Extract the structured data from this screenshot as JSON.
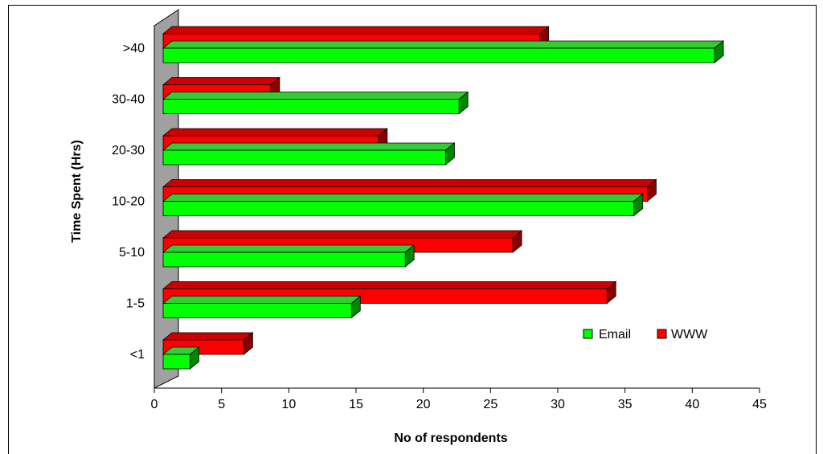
{
  "chart_data": {
    "type": "bar",
    "orientation": "horizontal",
    "style": "3d",
    "title": "",
    "xlabel": "No of respondents",
    "ylabel": "Time Spent (Hrs)",
    "categories": [
      "<1",
      "1-5",
      "5-10",
      "10-20",
      "20-30",
      "30-40",
      ">40"
    ],
    "series": [
      {
        "name": "Email",
        "color": "#00ff00",
        "values": [
          2,
          14,
          18,
          35,
          21,
          22,
          41
        ]
      },
      {
        "name": "WWW",
        "color": "#ff0000",
        "values": [
          6,
          33,
          26,
          36,
          16,
          8,
          28
        ]
      }
    ],
    "xlim": [
      0,
      45
    ],
    "xticks": [
      0,
      5,
      10,
      15,
      20,
      25,
      30,
      35,
      40,
      45
    ],
    "grid": false,
    "legend_position": "bottom-right",
    "colors": {
      "email_front": "#00ff00",
      "email_top": "#33cc33",
      "email_side": "#008800",
      "www_front": "#ff0000",
      "www_top": "#cc0000",
      "www_side": "#880000",
      "wall": "#a0a0a0"
    }
  }
}
